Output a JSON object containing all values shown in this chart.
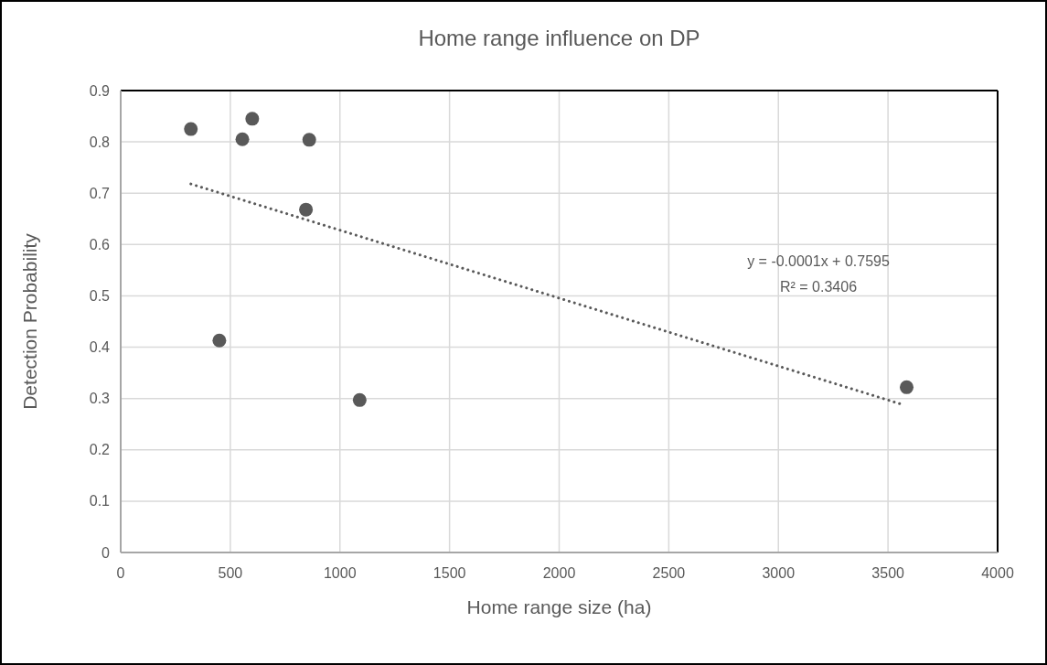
{
  "chart_data": {
    "type": "scatter",
    "title": "Home range influence on DP",
    "xlabel": "Home range size (ha)",
    "ylabel": "Detection Probability",
    "xlim": [
      0,
      4000
    ],
    "xticks": [
      0,
      500,
      1000,
      1500,
      2000,
      2500,
      3000,
      3500,
      4000
    ],
    "ylim": [
      0,
      0.9
    ],
    "yticks": [
      0,
      0.1,
      0.2,
      0.3,
      0.4,
      0.5,
      0.6,
      0.7,
      0.8,
      0.9
    ],
    "grid": true,
    "marker": "circle",
    "annotations": [
      "y = -0.0001x + 0.7595",
      "R² = 0.3406"
    ],
    "series": [
      {
        "color": "#595959",
        "x": [
          320,
          555,
          600,
          860,
          845,
          450,
          1090,
          3585
        ],
        "values": [
          0.825,
          0.805,
          0.845,
          0.804,
          0.668,
          0.413,
          0.297,
          0.322
        ]
      },
      {
        "type": "line",
        "color": "#595959",
        "marker": "none",
        "line_style": "dotted",
        "x": [
          320,
          3560
        ],
        "values": [
          0.718,
          0.289
        ]
      }
    ]
  }
}
